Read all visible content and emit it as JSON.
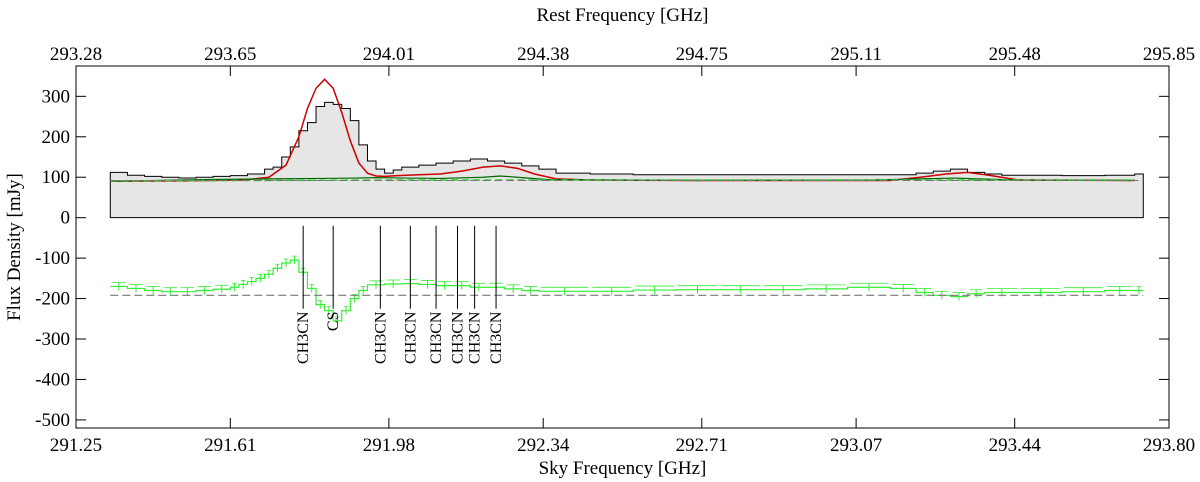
{
  "chart_data": {
    "type": "line",
    "title": "",
    "xlabel": "Sky Frequency [GHz]",
    "ylabel": "Flux Density [mJy]",
    "top_xlabel": "Rest Frequency [GHz]",
    "xlim": [
      291.25,
      293.8
    ],
    "ylim": [
      -520,
      375
    ],
    "xticks": [
      "291.25",
      "291.61",
      "291.98",
      "292.34",
      "292.71",
      "293.07",
      "293.44",
      "293.80"
    ],
    "xtick_values": [
      291.25,
      291.61,
      291.98,
      292.34,
      292.71,
      293.07,
      293.44,
      293.8
    ],
    "top_xticks": [
      "293.28",
      "293.65",
      "294.01",
      "294.38",
      "294.75",
      "295.11",
      "295.48",
      "295.85"
    ],
    "yticks": [
      "300",
      "200",
      "100",
      "0",
      "-100",
      "-200",
      "-300",
      "-400",
      "-500"
    ],
    "ytick_values": [
      300,
      200,
      100,
      0,
      -100,
      -200,
      -300,
      -400,
      -500
    ],
    "continuum_level": 92,
    "residual_offset": -192,
    "series": [
      {
        "type": "step-area",
        "x": [
          291.33,
          291.37,
          291.41,
          291.45,
          291.49,
          291.53,
          291.57,
          291.61,
          291.65,
          291.69,
          291.71,
          291.73,
          291.75,
          291.77,
          291.79,
          291.81,
          291.83,
          291.85,
          291.87,
          291.89,
          291.91,
          291.93,
          291.95,
          291.97,
          291.99,
          292.01,
          292.05,
          292.09,
          292.13,
          292.17,
          292.21,
          292.25,
          292.29,
          292.33,
          292.37,
          292.45,
          292.55,
          292.65,
          292.75,
          292.85,
          292.95,
          293.05,
          293.15,
          293.21,
          293.25,
          293.29,
          293.33,
          293.37,
          293.41,
          293.45,
          293.55,
          293.65,
          293.72
        ],
        "values": [
          112,
          105,
          102,
          100,
          98,
          100,
          102,
          104,
          108,
          120,
          125,
          150,
          175,
          215,
          235,
          275,
          285,
          280,
          270,
          240,
          180,
          140,
          120,
          110,
          118,
          125,
          130,
          135,
          140,
          145,
          140,
          135,
          128,
          120,
          110,
          108,
          106,
          106,
          106,
          106,
          106,
          106,
          106,
          110,
          115,
          120,
          112,
          108,
          105,
          105,
          104,
          105,
          108
        ]
      },
      {
        "type": "line",
        "color": "#cc0000",
        "x": [
          291.33,
          291.5,
          291.64,
          291.7,
          291.74,
          291.77,
          291.79,
          291.81,
          291.83,
          291.85,
          291.87,
          291.89,
          291.91,
          291.93,
          291.95,
          291.97,
          292.0,
          292.05,
          292.1,
          292.15,
          292.2,
          292.24,
          292.28,
          292.32,
          292.37,
          292.45,
          292.7,
          293.0,
          293.15,
          293.22,
          293.28,
          293.33,
          293.38,
          293.45,
          293.72
        ],
        "values": [
          90,
          91,
          93,
          100,
          130,
          200,
          270,
          320,
          342,
          320,
          260,
          190,
          135,
          110,
          103,
          102,
          104,
          106,
          108,
          115,
          125,
          128,
          122,
          108,
          96,
          93,
          92,
          92,
          92,
          100,
          108,
          112,
          105,
          93,
          92
        ]
      },
      {
        "type": "line",
        "color": "#006600",
        "x": [
          291.33,
          291.55,
          291.7,
          291.82,
          291.9,
          291.95,
          292.02,
          292.1,
          292.2,
          292.24,
          292.28,
          292.35,
          292.7,
          293.1,
          293.3,
          293.35,
          293.45,
          293.72
        ],
        "values": [
          90,
          94,
          96,
          97,
          98,
          99,
          98,
          97,
          100,
          103,
          100,
          94,
          92,
          93,
          98,
          96,
          93,
          92
        ]
      },
      {
        "type": "dashed-line",
        "color": "#33cc33",
        "x": [
          291.33,
          291.7,
          291.98,
          292.34,
          292.71,
          293.07,
          293.44,
          293.72
        ],
        "values": [
          91,
          92,
          93,
          93,
          93,
          93,
          93,
          93
        ]
      },
      {
        "type": "residual-step",
        "color": "#33ee33",
        "x": [
          291.33,
          291.37,
          291.41,
          291.45,
          291.49,
          291.53,
          291.57,
          291.61,
          291.63,
          291.65,
          291.67,
          291.69,
          291.71,
          291.73,
          291.75,
          291.77,
          291.79,
          291.81,
          291.83,
          291.85,
          291.87,
          291.89,
          291.91,
          291.93,
          291.97,
          292.01,
          292.05,
          292.09,
          292.13,
          292.17,
          292.21,
          292.25,
          292.29,
          292.33,
          292.45,
          292.55,
          292.65,
          292.75,
          292.85,
          292.95,
          293.05,
          293.15,
          293.21,
          293.25,
          293.29,
          293.33,
          293.37,
          293.45,
          293.55,
          293.65,
          293.72
        ],
        "values": [
          -170,
          -175,
          -180,
          -183,
          -183,
          -180,
          -177,
          -172,
          -165,
          -158,
          -150,
          -140,
          -125,
          -112,
          -105,
          -135,
          -175,
          -215,
          -230,
          -255,
          -230,
          -200,
          -180,
          -166,
          -164,
          -163,
          -165,
          -168,
          -168,
          -172,
          -172,
          -176,
          -180,
          -182,
          -182,
          -179,
          -178,
          -178,
          -178,
          -176,
          -172,
          -175,
          -185,
          -192,
          -195,
          -188,
          -185,
          -185,
          -183,
          -180,
          -180
        ]
      }
    ],
    "line_ids": [
      {
        "label": "CH3CN",
        "x": 291.78
      },
      {
        "label": "CS",
        "x": 291.85
      },
      {
        "label": "CH3CN",
        "x": 291.96
      },
      {
        "label": "CH3CN",
        "x": 292.03
      },
      {
        "label": "CH3CN",
        "x": 292.09
      },
      {
        "label": "CH3CN",
        "x": 292.14
      },
      {
        "label": "CH3CN",
        "x": 292.18
      },
      {
        "label": "CH3CN",
        "x": 292.23
      }
    ]
  }
}
